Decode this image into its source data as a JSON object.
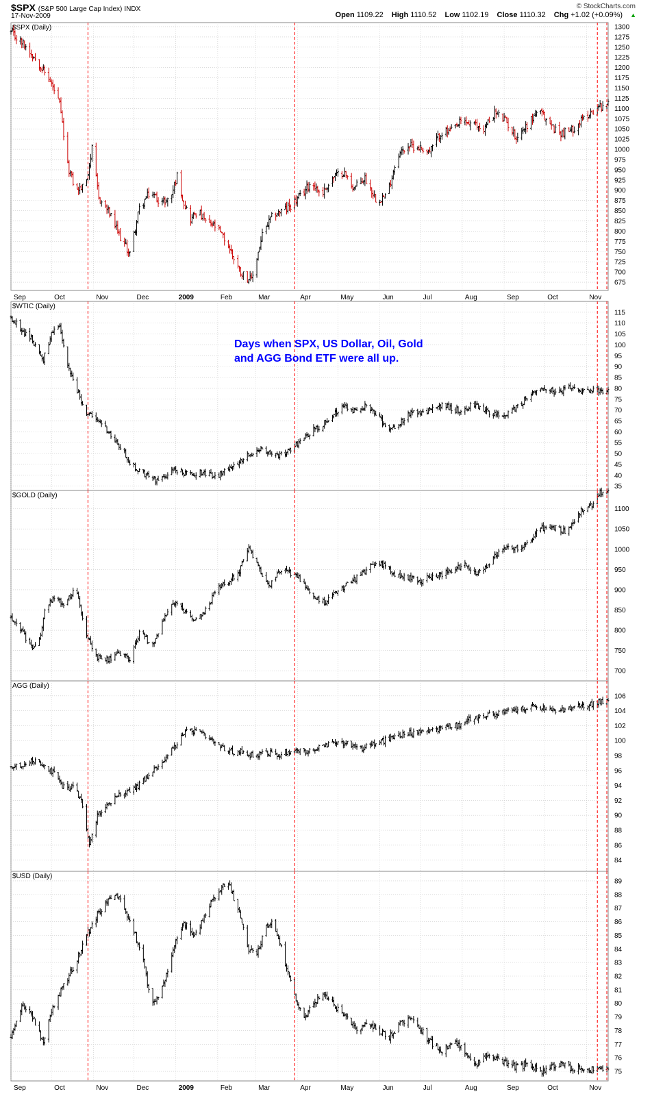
{
  "header": {
    "symbol": "$SPX",
    "description": "(S&P 500 Large Cap Index)",
    "exchange": "INDX",
    "date": "17-Nov-2009",
    "credit": "© StockCharts.com",
    "open_label": "Open",
    "open_value": "1109.22",
    "high_label": "High",
    "high_value": "1110.52",
    "low_label": "Low",
    "low_value": "1102.19",
    "close_label": "Close",
    "close_value": "1110.32",
    "chg_label": "Chg",
    "chg_value": "+1.02 (+0.09%)",
    "chg_arrow": "▲"
  },
  "annotation": {
    "line1": "Days when SPX, US Dollar, Oil, Gold",
    "line2": "and AGG Bond ETF were all up."
  },
  "colors": {
    "up": "#000000",
    "down": "#cc0000",
    "marker": "#ff0000",
    "annotation": "#0000ff",
    "grid": "#c8c8c8"
  },
  "chart_data": [
    {
      "type": "ohlc",
      "title": "$SPX (Daily)",
      "x_range": [
        "2008-09-01",
        "2009-11-17"
      ],
      "month_ticks": [
        "Sep",
        "Oct",
        "Nov",
        "Dec",
        "2009",
        "Feb",
        "Mar",
        "Apr",
        "May",
        "Jun",
        "Jul",
        "Aug",
        "Sep",
        "Oct",
        "Nov"
      ],
      "ylim": [
        655,
        1310
      ],
      "yticks": [
        675,
        700,
        725,
        750,
        775,
        800,
        825,
        850,
        875,
        900,
        925,
        950,
        975,
        1000,
        1025,
        1050,
        1075,
        1100,
        1125,
        1150,
        1175,
        1200,
        1225,
        1250,
        1275,
        1300
      ],
      "marked_dates": [
        "2008-10-28",
        "2009-03-30",
        "2009-11-09",
        "2009-11-16"
      ],
      "series": [
        {
          "x": [
            0,
            10,
            20,
            30,
            36,
            42,
            48,
            55,
            60,
            65,
            72,
            80,
            88,
            95,
            103,
            112,
            118,
            123,
            128,
            133,
            138,
            145,
            152,
            160,
            170,
            178,
            186,
            194,
            204,
            213,
            222,
            230,
            238,
            246,
            254,
            262,
            270,
            278,
            286,
            294,
            302,
            310,
            318,
            326,
            334,
            342,
            350,
            358,
            366,
            374,
            382,
            390,
            398,
            406,
            414,
            422,
            430,
            438
          ],
          "y": [
            1285,
            1255,
            1215,
            1160,
            1110,
            960,
            900,
            910,
            1000,
            880,
            850,
            790,
            745,
            855,
            895,
            870,
            880,
            935,
            870,
            830,
            850,
            820,
            810,
            770,
            700,
            680,
            790,
            840,
            855,
            880,
            920,
            890,
            930,
            945,
            905,
            930,
            880,
            885,
            985,
            1010,
            1005,
            995,
            1040,
            1045,
            1070,
            1060,
            1050,
            1090,
            1070,
            1030,
            1060,
            1095,
            1065,
            1040,
            1045,
            1070,
            1093,
            1110
          ]
        }
      ]
    },
    {
      "type": "ohlc",
      "title": "$WTIC (Daily)",
      "x_range": [
        "2008-09-01",
        "2009-11-17"
      ],
      "ylim": [
        33,
        120
      ],
      "yticks": [
        35,
        40,
        45,
        50,
        55,
        60,
        65,
        70,
        75,
        80,
        85,
        90,
        95,
        100,
        105,
        110,
        115
      ],
      "marked_dates": [
        "2008-10-28",
        "2009-03-30",
        "2009-11-09",
        "2009-11-16"
      ],
      "series": [
        {
          "x": [
            0,
            8,
            16,
            24,
            30,
            36,
            42,
            48,
            55,
            62,
            68,
            75,
            82,
            90,
            100,
            110,
            120,
            128,
            134,
            140,
            146,
            152,
            158,
            166,
            174,
            182,
            190,
            198,
            206,
            214,
            222,
            230,
            238,
            246,
            254,
            262,
            270,
            278,
            286,
            294,
            302,
            310,
            318,
            326,
            334,
            342,
            350,
            358,
            366,
            374,
            382,
            390,
            398,
            406,
            414,
            422,
            430,
            438
          ],
          "y": [
            113,
            107,
            102,
            93,
            105,
            108,
            90,
            80,
            70,
            65,
            64,
            57,
            52,
            44,
            40,
            37,
            43,
            41,
            40,
            42,
            40,
            39,
            42,
            45,
            49,
            52,
            50,
            49,
            51,
            56,
            60,
            63,
            68,
            72,
            70,
            72,
            68,
            62,
            63,
            68,
            69,
            70,
            72,
            71,
            69,
            73,
            70,
            68,
            67,
            71,
            75,
            80,
            79,
            78,
            80,
            78,
            79,
            79
          ]
        }
      ]
    },
    {
      "type": "ohlc",
      "title": "$GOLD (Daily)",
      "x_range": [
        "2008-09-01",
        "2009-11-17"
      ],
      "ylim": [
        675,
        1145
      ],
      "yticks": [
        700,
        750,
        800,
        850,
        900,
        950,
        1000,
        1050,
        1100
      ],
      "marked_dates": [
        "2008-10-28",
        "2009-03-30",
        "2009-11-09",
        "2009-11-16"
      ],
      "series": [
        {
          "x": [
            0,
            8,
            14,
            20,
            26,
            34,
            40,
            48,
            55,
            62,
            70,
            80,
            88,
            96,
            104,
            112,
            120,
            128,
            136,
            144,
            152,
            160,
            168,
            176,
            184,
            192,
            200,
            208,
            216,
            224,
            232,
            240,
            248,
            256,
            264,
            272,
            280,
            288,
            296,
            304,
            312,
            320,
            328,
            336,
            344,
            352,
            360,
            368,
            376,
            384,
            392,
            400,
            406,
            412,
            418,
            424,
            430,
            436
          ],
          "y": [
            830,
            800,
            760,
            760,
            860,
            880,
            860,
            910,
            800,
            735,
            725,
            740,
            730,
            800,
            760,
            820,
            870,
            845,
            820,
            850,
            900,
            920,
            940,
            1000,
            950,
            910,
            950,
            940,
            920,
            880,
            870,
            890,
            910,
            930,
            950,
            970,
            950,
            930,
            930,
            920,
            935,
            940,
            950,
            960,
            940,
            960,
            990,
            1010,
            1000,
            1020,
            1050,
            1055,
            1050,
            1040,
            1080,
            1100,
            1110,
            1140
          ]
        }
      ]
    },
    {
      "type": "ohlc",
      "title": "AGG (Daily)",
      "x_range": [
        "2008-09-01",
        "2009-11-17"
      ],
      "ylim": [
        82.5,
        108
      ],
      "yticks": [
        84,
        86,
        88,
        90,
        92,
        94,
        96,
        98,
        100,
        102,
        104,
        106
      ],
      "marked_dates": [
        "2008-10-28",
        "2009-03-30",
        "2009-11-09",
        "2009-11-16"
      ],
      "series": [
        {
          "x": [
            0,
            8,
            16,
            24,
            32,
            40,
            46,
            52,
            58,
            64,
            70,
            76,
            82,
            88,
            94,
            100,
            108,
            116,
            124,
            132,
            140,
            148,
            156,
            164,
            172,
            180,
            188,
            196,
            204,
            212,
            220,
            228,
            236,
            244,
            252,
            260,
            268,
            276,
            284,
            292,
            300,
            308,
            316,
            324,
            332,
            340,
            348,
            356,
            364,
            372,
            380,
            388,
            396,
            404,
            412,
            420,
            428,
            436
          ],
          "y": [
            96.5,
            96.8,
            97.2,
            97,
            95.5,
            93.5,
            94,
            92,
            86,
            90,
            91,
            92.5,
            93,
            93.2,
            94,
            95,
            96.5,
            98,
            100,
            101.5,
            101,
            100,
            99,
            98.5,
            98.5,
            98,
            98.5,
            98,
            98.5,
            98.7,
            98.5,
            99,
            99.5,
            99.8,
            99.5,
            99,
            99.5,
            100,
            100.5,
            101,
            101,
            101.5,
            101.5,
            102,
            102,
            103,
            103.2,
            103.5,
            103.8,
            104,
            104.3,
            104.5,
            104.2,
            104,
            104.2,
            104.5,
            104.8,
            105.2
          ]
        }
      ]
    },
    {
      "type": "ohlc",
      "title": "$USD (Daily)",
      "x_range": [
        "2008-09-01",
        "2009-11-17"
      ],
      "ylim": [
        74.3,
        89.7
      ],
      "yticks": [
        75,
        76,
        77,
        78,
        79,
        80,
        81,
        82,
        83,
        84,
        85,
        86,
        87,
        88,
        89
      ],
      "marked_dates": [
        "2008-10-28",
        "2009-03-30",
        "2009-11-09",
        "2009-11-16"
      ],
      "series": [
        {
          "x": [
            0,
            8,
            16,
            24,
            32,
            40,
            48,
            56,
            64,
            72,
            80,
            88,
            96,
            104,
            112,
            120,
            128,
            136,
            144,
            152,
            160,
            168,
            176,
            182,
            188,
            194,
            200,
            206,
            212,
            218,
            224,
            230,
            236,
            242,
            248,
            256,
            264,
            272,
            280,
            288,
            296,
            304,
            312,
            320,
            328,
            336,
            344,
            352,
            360,
            368,
            376,
            384,
            392,
            400,
            408,
            416,
            424,
            432,
            438
          ],
          "y": [
            77.5,
            80,
            79,
            77,
            80,
            81.5,
            83,
            85,
            86.5,
            87.5,
            88,
            86,
            84,
            80,
            81,
            84,
            86,
            85,
            86.5,
            88,
            89,
            87,
            84,
            83.5,
            85.5,
            86,
            84,
            82,
            80,
            79,
            80,
            80.5,
            80.3,
            79.5,
            79,
            78,
            78.5,
            78,
            77.5,
            78.5,
            79,
            78,
            77,
            76.5,
            77.2,
            76.5,
            75.5,
            76.3,
            76,
            75.5,
            75.3,
            75.6,
            75,
            75.3,
            75.5,
            75.2,
            75.3,
            75.1,
            75.2
          ]
        }
      ]
    }
  ]
}
